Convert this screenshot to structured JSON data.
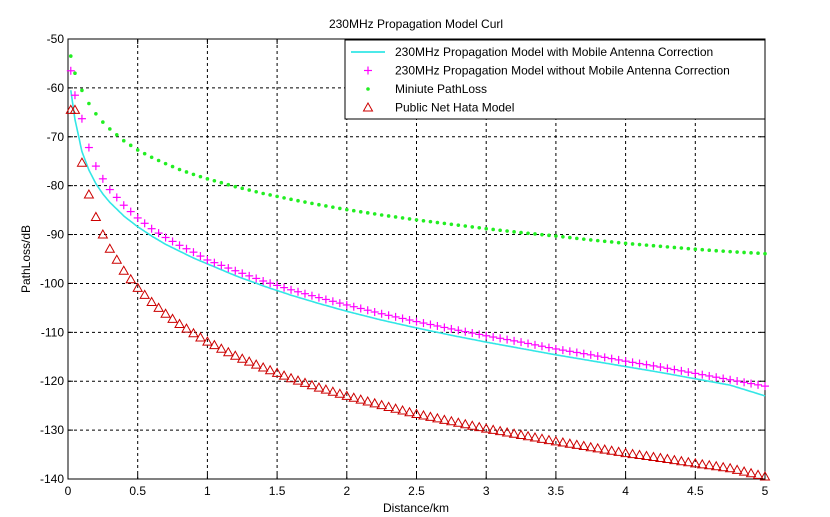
{
  "chart_data": {
    "type": "line",
    "title": "230MHz Propagation Model Curl",
    "xlabel": "Distance/km",
    "ylabel": "PathLoss/dB",
    "xlim": [
      0,
      5
    ],
    "ylim": [
      -140,
      -50
    ],
    "xticks": [
      0,
      0.5,
      1,
      1.5,
      2,
      2.5,
      3,
      3.5,
      4,
      4.5,
      5
    ],
    "xtick_labels": [
      "0",
      "0.5",
      "1",
      "1.5",
      "2",
      "2.5",
      "3",
      "3.5",
      "4",
      "4.5",
      "5"
    ],
    "yticks": [
      -140,
      -130,
      -120,
      -110,
      -100,
      -90,
      -80,
      -70,
      -60,
      -50
    ],
    "ytick_labels": [
      "-140",
      "-130",
      "-120",
      "-110",
      "-100",
      "-90",
      "-80",
      "-70",
      "-60",
      "-50"
    ],
    "grid": true,
    "legend_position": "top-right",
    "x": [
      0.02,
      0.05,
      0.1,
      0.15,
      0.2,
      0.25,
      0.3,
      0.4,
      0.5,
      0.6,
      0.7,
      0.8,
      0.9,
      1.0,
      1.2,
      1.4,
      1.6,
      1.8,
      2.0,
      2.25,
      2.5,
      2.75,
      3.0,
      3.25,
      3.5,
      3.75,
      4.0,
      4.25,
      4.5,
      4.75,
      5.0
    ],
    "series": [
      {
        "name": "230MHz Propagation Model with Mobile Antenna Correction",
        "marker": "line",
        "color": "#33e6e6",
        "values": [
          -60.5,
          -66.5,
          -73.0,
          -76.8,
          -79.6,
          -81.7,
          -83.4,
          -86.2,
          -88.4,
          -90.3,
          -92.0,
          -93.4,
          -94.8,
          -96.0,
          -98.4,
          -100.5,
          -102.4,
          -104.1,
          -105.7,
          -107.5,
          -109.1,
          -110.6,
          -112.0,
          -113.3,
          -114.6,
          -115.8,
          -117.0,
          -118.2,
          -119.5,
          -120.8,
          -123.0
        ]
      },
      {
        "name": "230MHz Propagation Model without Mobile Antenna Correction",
        "marker": "plus",
        "color": "#ff00ff",
        "values": [
          -56.5,
          -61.5,
          -66.3,
          -72.2,
          -76.0,
          -78.6,
          -80.8,
          -84.0,
          -86.6,
          -88.8,
          -90.6,
          -92.2,
          -93.6,
          -95.2,
          -97.4,
          -99.5,
          -101.3,
          -102.9,
          -104.4,
          -106.2,
          -107.8,
          -109.3,
          -110.7,
          -112.0,
          -113.4,
          -114.6,
          -115.9,
          -117.1,
          -118.4,
          -119.7,
          -121.0
        ]
      },
      {
        "name": "Miniute PathLoss",
        "marker": "dot",
        "color": "#22ee22",
        "values": [
          -53.5,
          -57.0,
          -60.5,
          -63.2,
          -65.3,
          -67.0,
          -68.4,
          -70.8,
          -72.7,
          -74.2,
          -75.5,
          -76.7,
          -77.7,
          -78.6,
          -80.2,
          -81.6,
          -82.8,
          -83.9,
          -84.9,
          -86.0,
          -87.0,
          -87.9,
          -88.8,
          -89.6,
          -90.3,
          -91.1,
          -91.8,
          -92.4,
          -93.0,
          -93.5,
          -93.9
        ]
      },
      {
        "name": "Public Net Hata Model",
        "marker": "triangle",
        "color": "#cc0000",
        "values": [
          -64.5,
          -64.5,
          -75.3,
          -81.8,
          -86.4,
          -90.0,
          -92.9,
          -97.4,
          -100.9,
          -103.8,
          -106.2,
          -108.3,
          -110.2,
          -111.9,
          -114.8,
          -117.2,
          -119.4,
          -121.3,
          -123.0,
          -124.9,
          -126.7,
          -128.2,
          -129.7,
          -131.0,
          -132.3,
          -133.5,
          -134.7,
          -135.7,
          -136.8,
          -137.8,
          -139.5
        ]
      }
    ]
  }
}
